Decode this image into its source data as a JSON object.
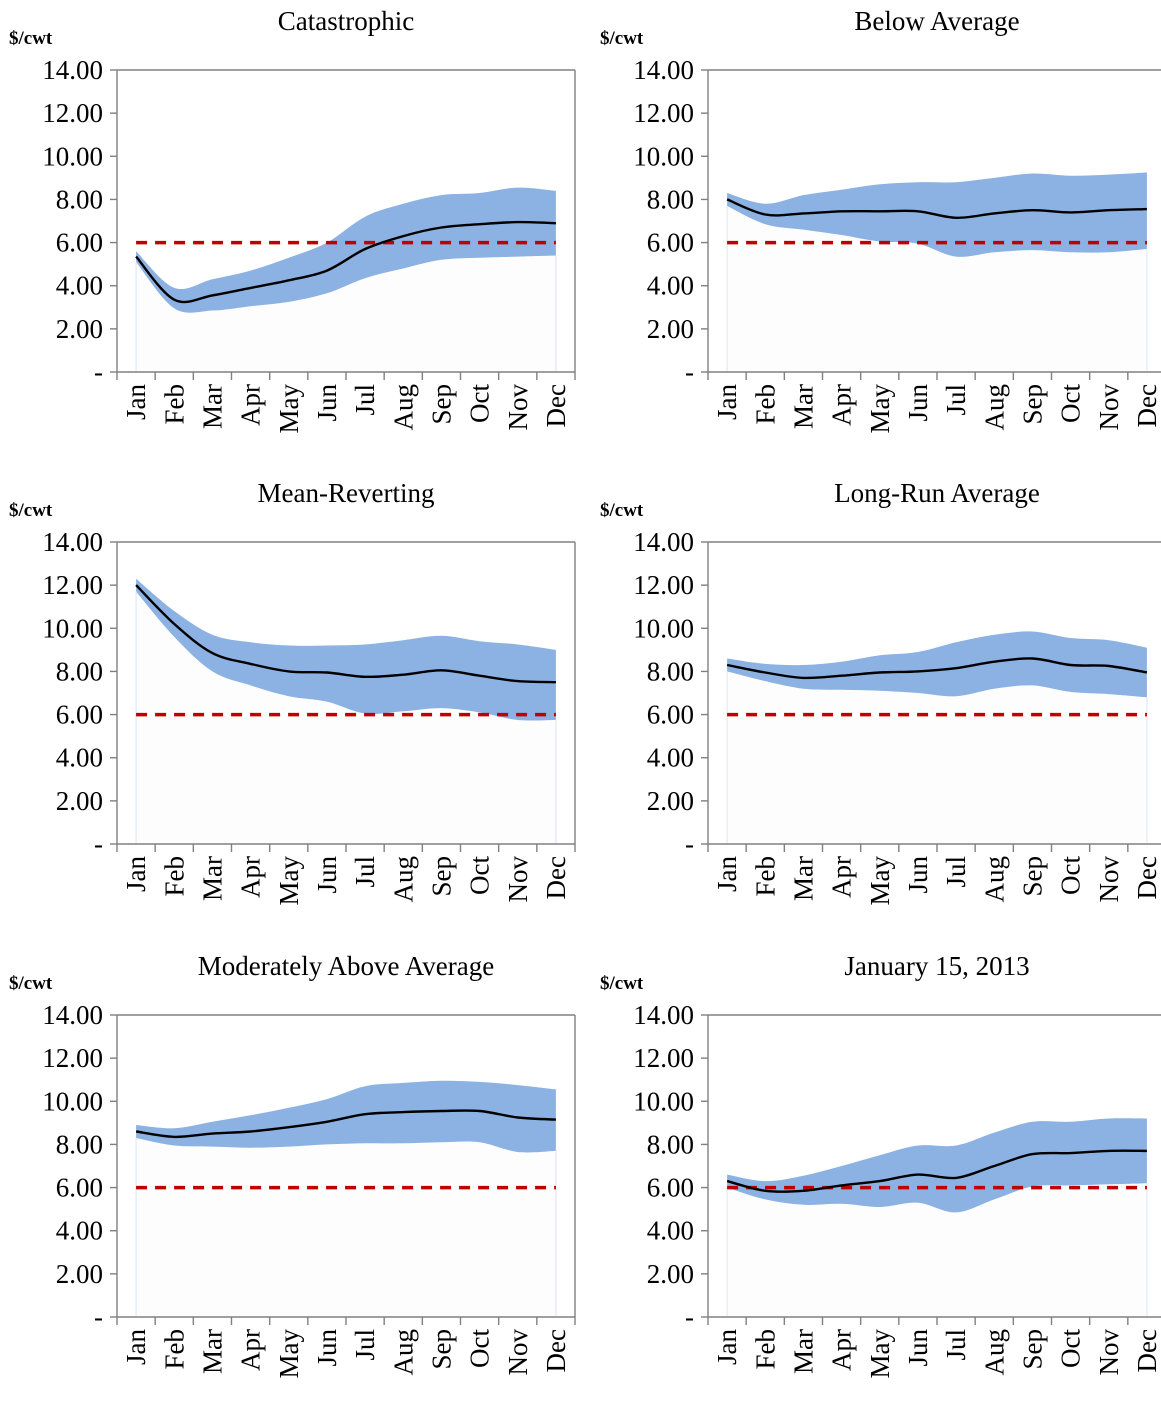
{
  "months": [
    "Jan",
    "Feb",
    "Mar",
    "Apr",
    "May",
    "Jun",
    "Jul",
    "Aug",
    "Sep",
    "Oct",
    "Nov",
    "Dec"
  ],
  "y_tick_labels": [
    "-",
    "2.00",
    "4.00",
    "6.00",
    "8.00",
    "10.00",
    "12.00",
    "14.00"
  ],
  "colors": {
    "band": "#8bb2e2",
    "median": "#000000",
    "reference": "#c00000",
    "axis": "#808080"
  },
  "chart_data": [
    {
      "type": "area",
      "title": "Catastrophic",
      "ylabel": "$/cwt",
      "ylim": [
        0,
        14
      ],
      "grid": false,
      "legend": "none",
      "x": [
        "Jan",
        "Feb",
        "Mar",
        "Apr",
        "May",
        "Jun",
        "Jul",
        "Aug",
        "Sep",
        "Oct",
        "Nov",
        "Dec"
      ],
      "series": [
        {
          "role": "upper",
          "values": [
            5.6,
            3.9,
            4.3,
            4.7,
            5.3,
            6.0,
            7.2,
            7.8,
            8.2,
            8.3,
            8.55,
            8.4
          ]
        },
        {
          "role": "median",
          "values": [
            5.35,
            3.35,
            3.55,
            3.9,
            4.25,
            4.7,
            5.7,
            6.3,
            6.7,
            6.85,
            6.95,
            6.9
          ]
        },
        {
          "role": "lower",
          "values": [
            5.1,
            2.95,
            2.85,
            3.05,
            3.25,
            3.65,
            4.35,
            4.8,
            5.2,
            5.3,
            5.35,
            5.4
          ]
        },
        {
          "role": "reference",
          "values": [
            6,
            6,
            6,
            6,
            6,
            6,
            6,
            6,
            6,
            6,
            6,
            6
          ]
        }
      ]
    },
    {
      "type": "area",
      "title": "Below Average",
      "ylabel": "$/cwt",
      "ylim": [
        0,
        14
      ],
      "grid": false,
      "legend": "none",
      "x": [
        "Jan",
        "Feb",
        "Mar",
        "Apr",
        "May",
        "Jun",
        "Jul",
        "Aug",
        "Sep",
        "Oct",
        "Nov",
        "Dec"
      ],
      "series": [
        {
          "role": "upper",
          "values": [
            8.3,
            7.8,
            8.2,
            8.45,
            8.7,
            8.8,
            8.8,
            9.0,
            9.2,
            9.1,
            9.15,
            9.25
          ]
        },
        {
          "role": "median",
          "values": [
            8.0,
            7.3,
            7.35,
            7.45,
            7.45,
            7.45,
            7.15,
            7.35,
            7.5,
            7.4,
            7.5,
            7.55
          ]
        },
        {
          "role": "lower",
          "values": [
            7.7,
            6.85,
            6.6,
            6.35,
            6.05,
            5.95,
            5.35,
            5.55,
            5.65,
            5.55,
            5.55,
            5.7
          ]
        },
        {
          "role": "reference",
          "values": [
            6,
            6,
            6,
            6,
            6,
            6,
            6,
            6,
            6,
            6,
            6,
            6
          ]
        }
      ]
    },
    {
      "type": "area",
      "title": "Mean-Reverting",
      "ylabel": "$/cwt",
      "ylim": [
        0,
        14
      ],
      "grid": false,
      "legend": "none",
      "x": [
        "Jan",
        "Feb",
        "Mar",
        "Apr",
        "May",
        "Jun",
        "Jul",
        "Aug",
        "Sep",
        "Oct",
        "Nov",
        "Dec"
      ],
      "series": [
        {
          "role": "upper",
          "values": [
            12.3,
            10.8,
            9.7,
            9.35,
            9.2,
            9.2,
            9.25,
            9.45,
            9.65,
            9.4,
            9.25,
            9.0
          ]
        },
        {
          "role": "median",
          "values": [
            12.0,
            10.2,
            8.85,
            8.35,
            8.0,
            7.95,
            7.75,
            7.85,
            8.05,
            7.8,
            7.55,
            7.5
          ]
        },
        {
          "role": "lower",
          "values": [
            11.7,
            9.6,
            8.0,
            7.35,
            6.85,
            6.6,
            6.05,
            6.15,
            6.3,
            6.1,
            5.75,
            5.75
          ]
        },
        {
          "role": "reference",
          "values": [
            6,
            6,
            6,
            6,
            6,
            6,
            6,
            6,
            6,
            6,
            6,
            6
          ]
        }
      ]
    },
    {
      "type": "area",
      "title": "Long-Run Average",
      "ylabel": "$/cwt",
      "ylim": [
        0,
        14
      ],
      "grid": false,
      "legend": "none",
      "x": [
        "Jan",
        "Feb",
        "Mar",
        "Apr",
        "May",
        "Jun",
        "Jul",
        "Aug",
        "Sep",
        "Oct",
        "Nov",
        "Dec"
      ],
      "series": [
        {
          "role": "upper",
          "values": [
            8.6,
            8.35,
            8.3,
            8.45,
            8.75,
            8.9,
            9.35,
            9.7,
            9.85,
            9.55,
            9.45,
            9.1
          ]
        },
        {
          "role": "median",
          "values": [
            8.3,
            7.95,
            7.7,
            7.8,
            7.95,
            8.0,
            8.15,
            8.45,
            8.6,
            8.3,
            8.25,
            7.95
          ]
        },
        {
          "role": "lower",
          "values": [
            8.0,
            7.55,
            7.2,
            7.15,
            7.1,
            7.0,
            6.85,
            7.2,
            7.35,
            7.05,
            6.95,
            6.8
          ]
        },
        {
          "role": "reference",
          "values": [
            6,
            6,
            6,
            6,
            6,
            6,
            6,
            6,
            6,
            6,
            6,
            6
          ]
        }
      ]
    },
    {
      "type": "area",
      "title": "Moderately Above Average",
      "ylabel": "$/cwt",
      "ylim": [
        0,
        14
      ],
      "grid": false,
      "legend": "none",
      "x": [
        "Jan",
        "Feb",
        "Mar",
        "Apr",
        "May",
        "Jun",
        "Jul",
        "Aug",
        "Sep",
        "Oct",
        "Nov",
        "Dec"
      ],
      "series": [
        {
          "role": "upper",
          "values": [
            8.9,
            8.75,
            9.05,
            9.35,
            9.7,
            10.1,
            10.7,
            10.85,
            10.95,
            10.9,
            10.75,
            10.55
          ]
        },
        {
          "role": "median",
          "values": [
            8.6,
            8.35,
            8.5,
            8.6,
            8.8,
            9.05,
            9.4,
            9.5,
            9.55,
            9.55,
            9.25,
            9.15
          ]
        },
        {
          "role": "lower",
          "values": [
            8.3,
            7.95,
            7.9,
            7.85,
            7.9,
            8.0,
            8.05,
            8.05,
            8.1,
            8.1,
            7.65,
            7.7
          ]
        },
        {
          "role": "reference",
          "values": [
            6,
            6,
            6,
            6,
            6,
            6,
            6,
            6,
            6,
            6,
            6,
            6
          ]
        }
      ]
    },
    {
      "type": "area",
      "title": "January 15, 2013",
      "ylabel": "$/cwt",
      "ylim": [
        0,
        14
      ],
      "grid": false,
      "legend": "none",
      "x": [
        "Jan",
        "Feb",
        "Mar",
        "Apr",
        "May",
        "Jun",
        "Jul",
        "Aug",
        "Sep",
        "Oct",
        "Nov",
        "Dec"
      ],
      "series": [
        {
          "role": "upper",
          "values": [
            6.6,
            6.3,
            6.55,
            7.0,
            7.5,
            7.95,
            7.95,
            8.55,
            9.05,
            9.05,
            9.2,
            9.2
          ]
        },
        {
          "role": "median",
          "values": [
            6.3,
            5.85,
            5.85,
            6.1,
            6.3,
            6.6,
            6.45,
            7.0,
            7.55,
            7.6,
            7.7,
            7.7
          ]
        },
        {
          "role": "lower",
          "values": [
            6.0,
            5.45,
            5.2,
            5.25,
            5.1,
            5.3,
            4.85,
            5.45,
            6.05,
            6.1,
            6.15,
            6.2
          ]
        },
        {
          "role": "reference",
          "values": [
            6,
            6,
            6,
            6,
            6,
            6,
            6,
            6,
            6,
            6,
            6,
            6
          ]
        }
      ]
    }
  ]
}
